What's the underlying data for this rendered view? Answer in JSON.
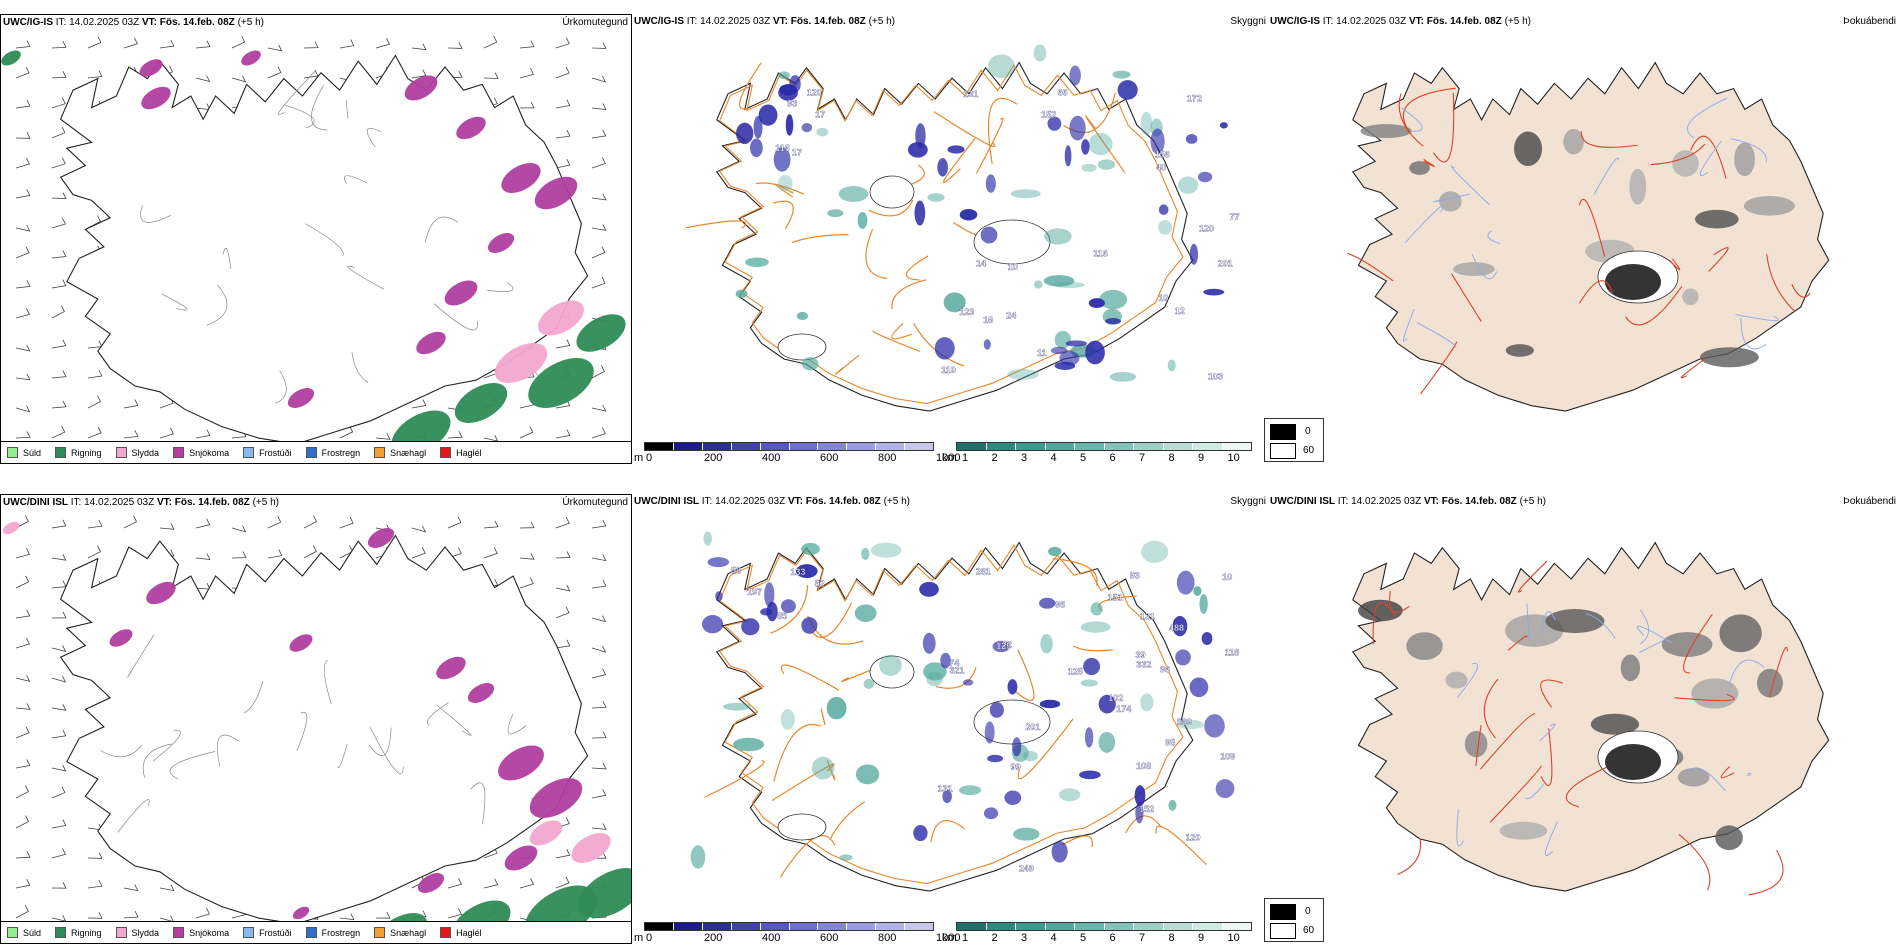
{
  "rows": [
    {
      "model": "UWC/IG-IS",
      "it_label": "IT:",
      "it_value": "14.02.2025 03Z",
      "vt_label": "VT:",
      "vt_value": "Fös. 14.feb. 08Z",
      "lead": "(+5 h)",
      "panel1_title": "Úrkomutegund",
      "panel2_title": "Skyggni",
      "panel3_title": "Þokuábendi",
      "ceiling_labels": [
        "120",
        "93",
        "17",
        "17",
        "116",
        "10",
        "77",
        "201",
        "172",
        "110",
        "24",
        "131",
        "16",
        "10",
        "11",
        "40",
        "12",
        "103",
        "123",
        "156",
        "14",
        "116",
        "120",
        "152",
        "66"
      ]
    },
    {
      "model": "UWC/DINI ISL",
      "it_label": "IT:",
      "it_value": "14.02.2025 03Z",
      "vt_label": "VT:",
      "vt_value": "Fös. 14.feb. 08Z",
      "lead": "(+5 h)",
      "panel1_title": "Úrkomutegund",
      "panel2_title": "Skyggni",
      "panel3_title": "Þokuábendi",
      "ceiling_labels": [
        "133",
        "85",
        "197",
        "52",
        "58",
        "96",
        "22",
        "10",
        "281",
        "569",
        "93",
        "96",
        "74",
        "125",
        "102",
        "249",
        "332",
        "109",
        "120",
        "39",
        "129",
        "321",
        "95",
        "108",
        "99",
        "201",
        "131",
        "488",
        "174",
        "151",
        "118",
        "131",
        "152"
      ]
    }
  ],
  "precip_legend": [
    {
      "label": "Súld",
      "color": "#90ee90"
    },
    {
      "label": "Rigning",
      "color": "#2e8b57"
    },
    {
      "label": "Slydda",
      "color": "#f2a7d0"
    },
    {
      "label": "Snjókoma",
      "color": "#b03fa0"
    },
    {
      "label": "Frostúði",
      "color": "#8ab8f0"
    },
    {
      "label": "Frostregn",
      "color": "#2f6fc8"
    },
    {
      "label": "Snæhagl",
      "color": "#f0a030"
    },
    {
      "label": "Haglél",
      "color": "#e01818"
    }
  ],
  "ceiling_scale": {
    "unit": "m",
    "ticks": [
      "0",
      "200",
      "400",
      "600",
      "800",
      "1000"
    ],
    "colors": [
      "#000000",
      "#1a1a8c",
      "#2b2ba8",
      "#3f3fb8",
      "#5656c4",
      "#6e6ece",
      "#8585d6",
      "#9c9cde",
      "#b2b2e6",
      "#c8c8ee"
    ]
  },
  "visibility_scale": {
    "unit": "km",
    "ticks": [
      "1",
      "2",
      "3",
      "4",
      "5",
      "6",
      "7",
      "8",
      "9",
      "10"
    ],
    "colors": [
      "#1f6f6a",
      "#2d8a80",
      "#3b9a8e",
      "#52a89c",
      "#6ab6aa",
      "#84c3b8",
      "#9ed0c6",
      "#b8ddd5",
      "#d2eae4",
      "#eef7f5"
    ]
  },
  "fog_scale": {
    "max_label": "0",
    "min_label": "60",
    "max_color": "#000000",
    "min_color": "#ffffff"
  },
  "colors": {
    "land_fog": "#f2e2d4",
    "roads": "#e8872a",
    "roads_fog": "#d9442a",
    "rivers": "#8ea8e8",
    "coast": "#222222",
    "rain": "#2e8b57",
    "snow": "#b03fa0",
    "sleet": "#f2a7d0",
    "ceiling": "#2b2ba8",
    "vis": "#52a89c"
  }
}
